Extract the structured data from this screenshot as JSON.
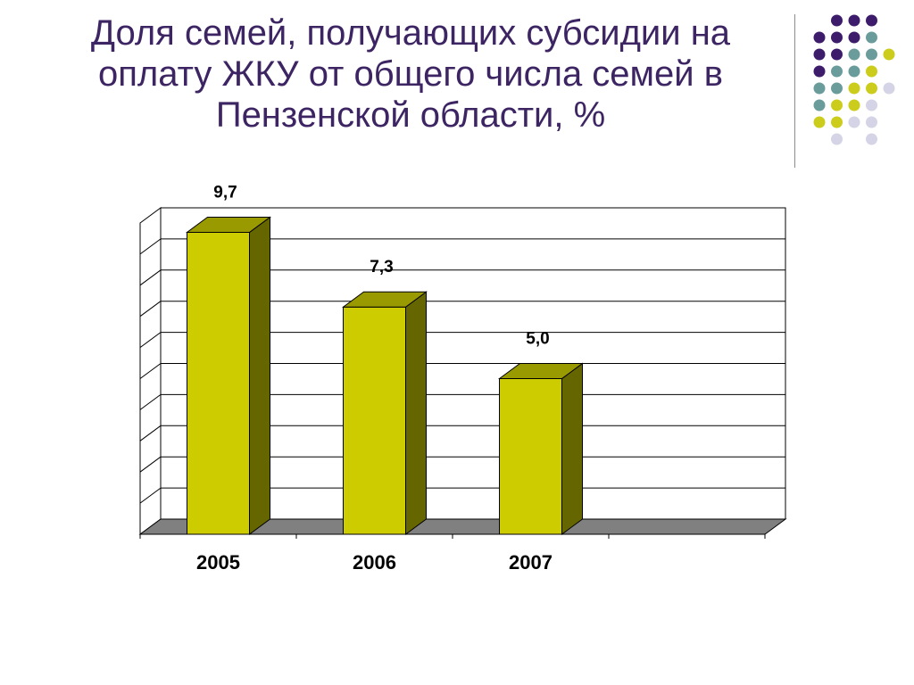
{
  "slide": {
    "title_lines": [
      "Доля семей, получающих субсидии на",
      "оплату ЖКУ от общего числа семей в",
      "Пензенской области, %"
    ]
  },
  "colors": {
    "title": "#3d2563",
    "bar_front": "#cccc00",
    "bar_top": "#999900",
    "bar_side": "#666600",
    "floor": "#808080",
    "dot_purple": "#3d1c6b",
    "dot_teal": "#6b9c9c",
    "dot_yellow": "#cccc1c",
    "dot_lavender": "#d4d4e6"
  },
  "chart_data": {
    "type": "bar",
    "title": "",
    "xlabel": "",
    "ylabel": "",
    "categories": [
      "2005",
      "2006",
      "2007",
      ""
    ],
    "values": [
      9.7,
      7.3,
      5.0,
      null
    ],
    "value_labels": [
      "9,7",
      "7,3",
      "5,0",
      ""
    ],
    "ylim": [
      0,
      10
    ],
    "grid": true,
    "legend": "none",
    "style": "3d-column"
  }
}
